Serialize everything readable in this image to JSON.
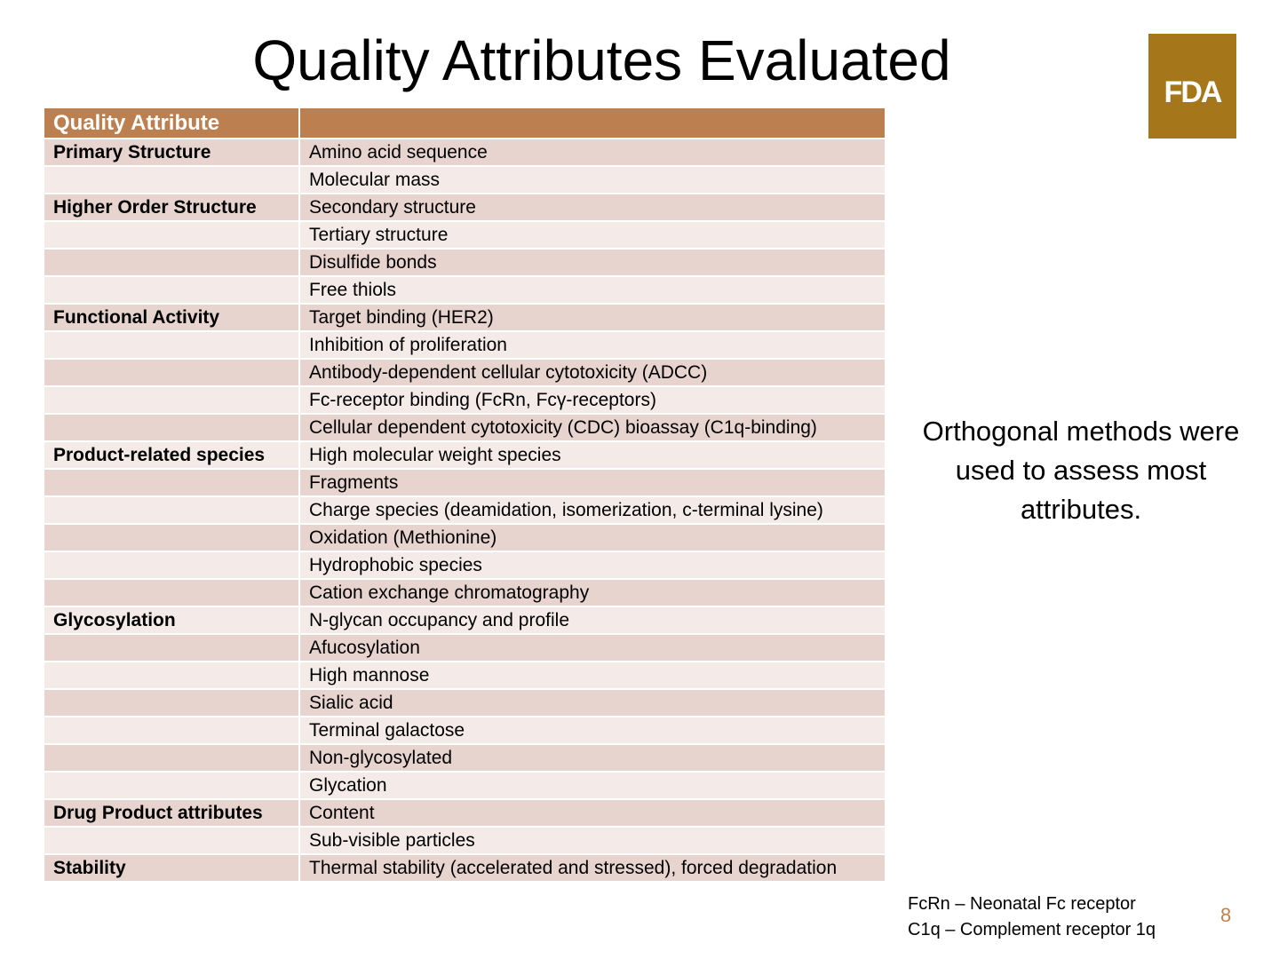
{
  "slide": {
    "title": "Quality Attributes Evaluated",
    "logo_text": "FDA",
    "note": "Orthogonal methods were used to assess most attributes.",
    "footnotes": [
      "FcRn – Neonatal Fc receptor",
      "C1q – Complement receptor 1q"
    ],
    "page_number": "8"
  },
  "table": {
    "headers": [
      "Quality Attribute",
      ""
    ],
    "rows": [
      {
        "category": "Primary Structure",
        "attribute": "Amino acid sequence"
      },
      {
        "category": "",
        "attribute": "Molecular mass"
      },
      {
        "category": "Higher Order Structure",
        "attribute": "Secondary structure"
      },
      {
        "category": "",
        "attribute": "Tertiary structure"
      },
      {
        "category": "",
        "attribute": "Disulfide bonds"
      },
      {
        "category": "",
        "attribute": "Free thiols"
      },
      {
        "category": "Functional Activity",
        "attribute": "Target binding (HER2)"
      },
      {
        "category": "",
        "attribute": "Inhibition of proliferation"
      },
      {
        "category": "",
        "attribute": "Antibody-dependent cellular cytotoxicity (ADCC)"
      },
      {
        "category": "",
        "attribute": "Fc-receptor binding (FcRn, Fcγ-receptors)"
      },
      {
        "category": "",
        "attribute": "Cellular dependent cytotoxicity (CDC) bioassay (C1q-binding)"
      },
      {
        "category": "Product-related species",
        "attribute": "High molecular weight species"
      },
      {
        "category": "",
        "attribute": "Fragments"
      },
      {
        "category": "",
        "attribute": "Charge species (deamidation, isomerization, c-terminal lysine)"
      },
      {
        "category": "",
        "attribute": "Oxidation (Methionine)"
      },
      {
        "category": "",
        "attribute": "Hydrophobic species"
      },
      {
        "category": "",
        "attribute": "Cation exchange chromatography"
      },
      {
        "category": "Glycosylation",
        "attribute": "N-glycan occupancy and profile"
      },
      {
        "category": "",
        "attribute": "Afucosylation"
      },
      {
        "category": "",
        "attribute": "High mannose"
      },
      {
        "category": "",
        "attribute": "Sialic acid"
      },
      {
        "category": "",
        "attribute": "Terminal galactose"
      },
      {
        "category": "",
        "attribute": "Non-glycosylated"
      },
      {
        "category": "",
        "attribute": "Glycation"
      },
      {
        "category": "Drug Product attributes",
        "attribute": "Content"
      },
      {
        "category": "",
        "attribute": "Sub-visible particles"
      },
      {
        "category": "Stability",
        "attribute": "Thermal stability (accelerated and stressed), forced degradation"
      }
    ]
  }
}
